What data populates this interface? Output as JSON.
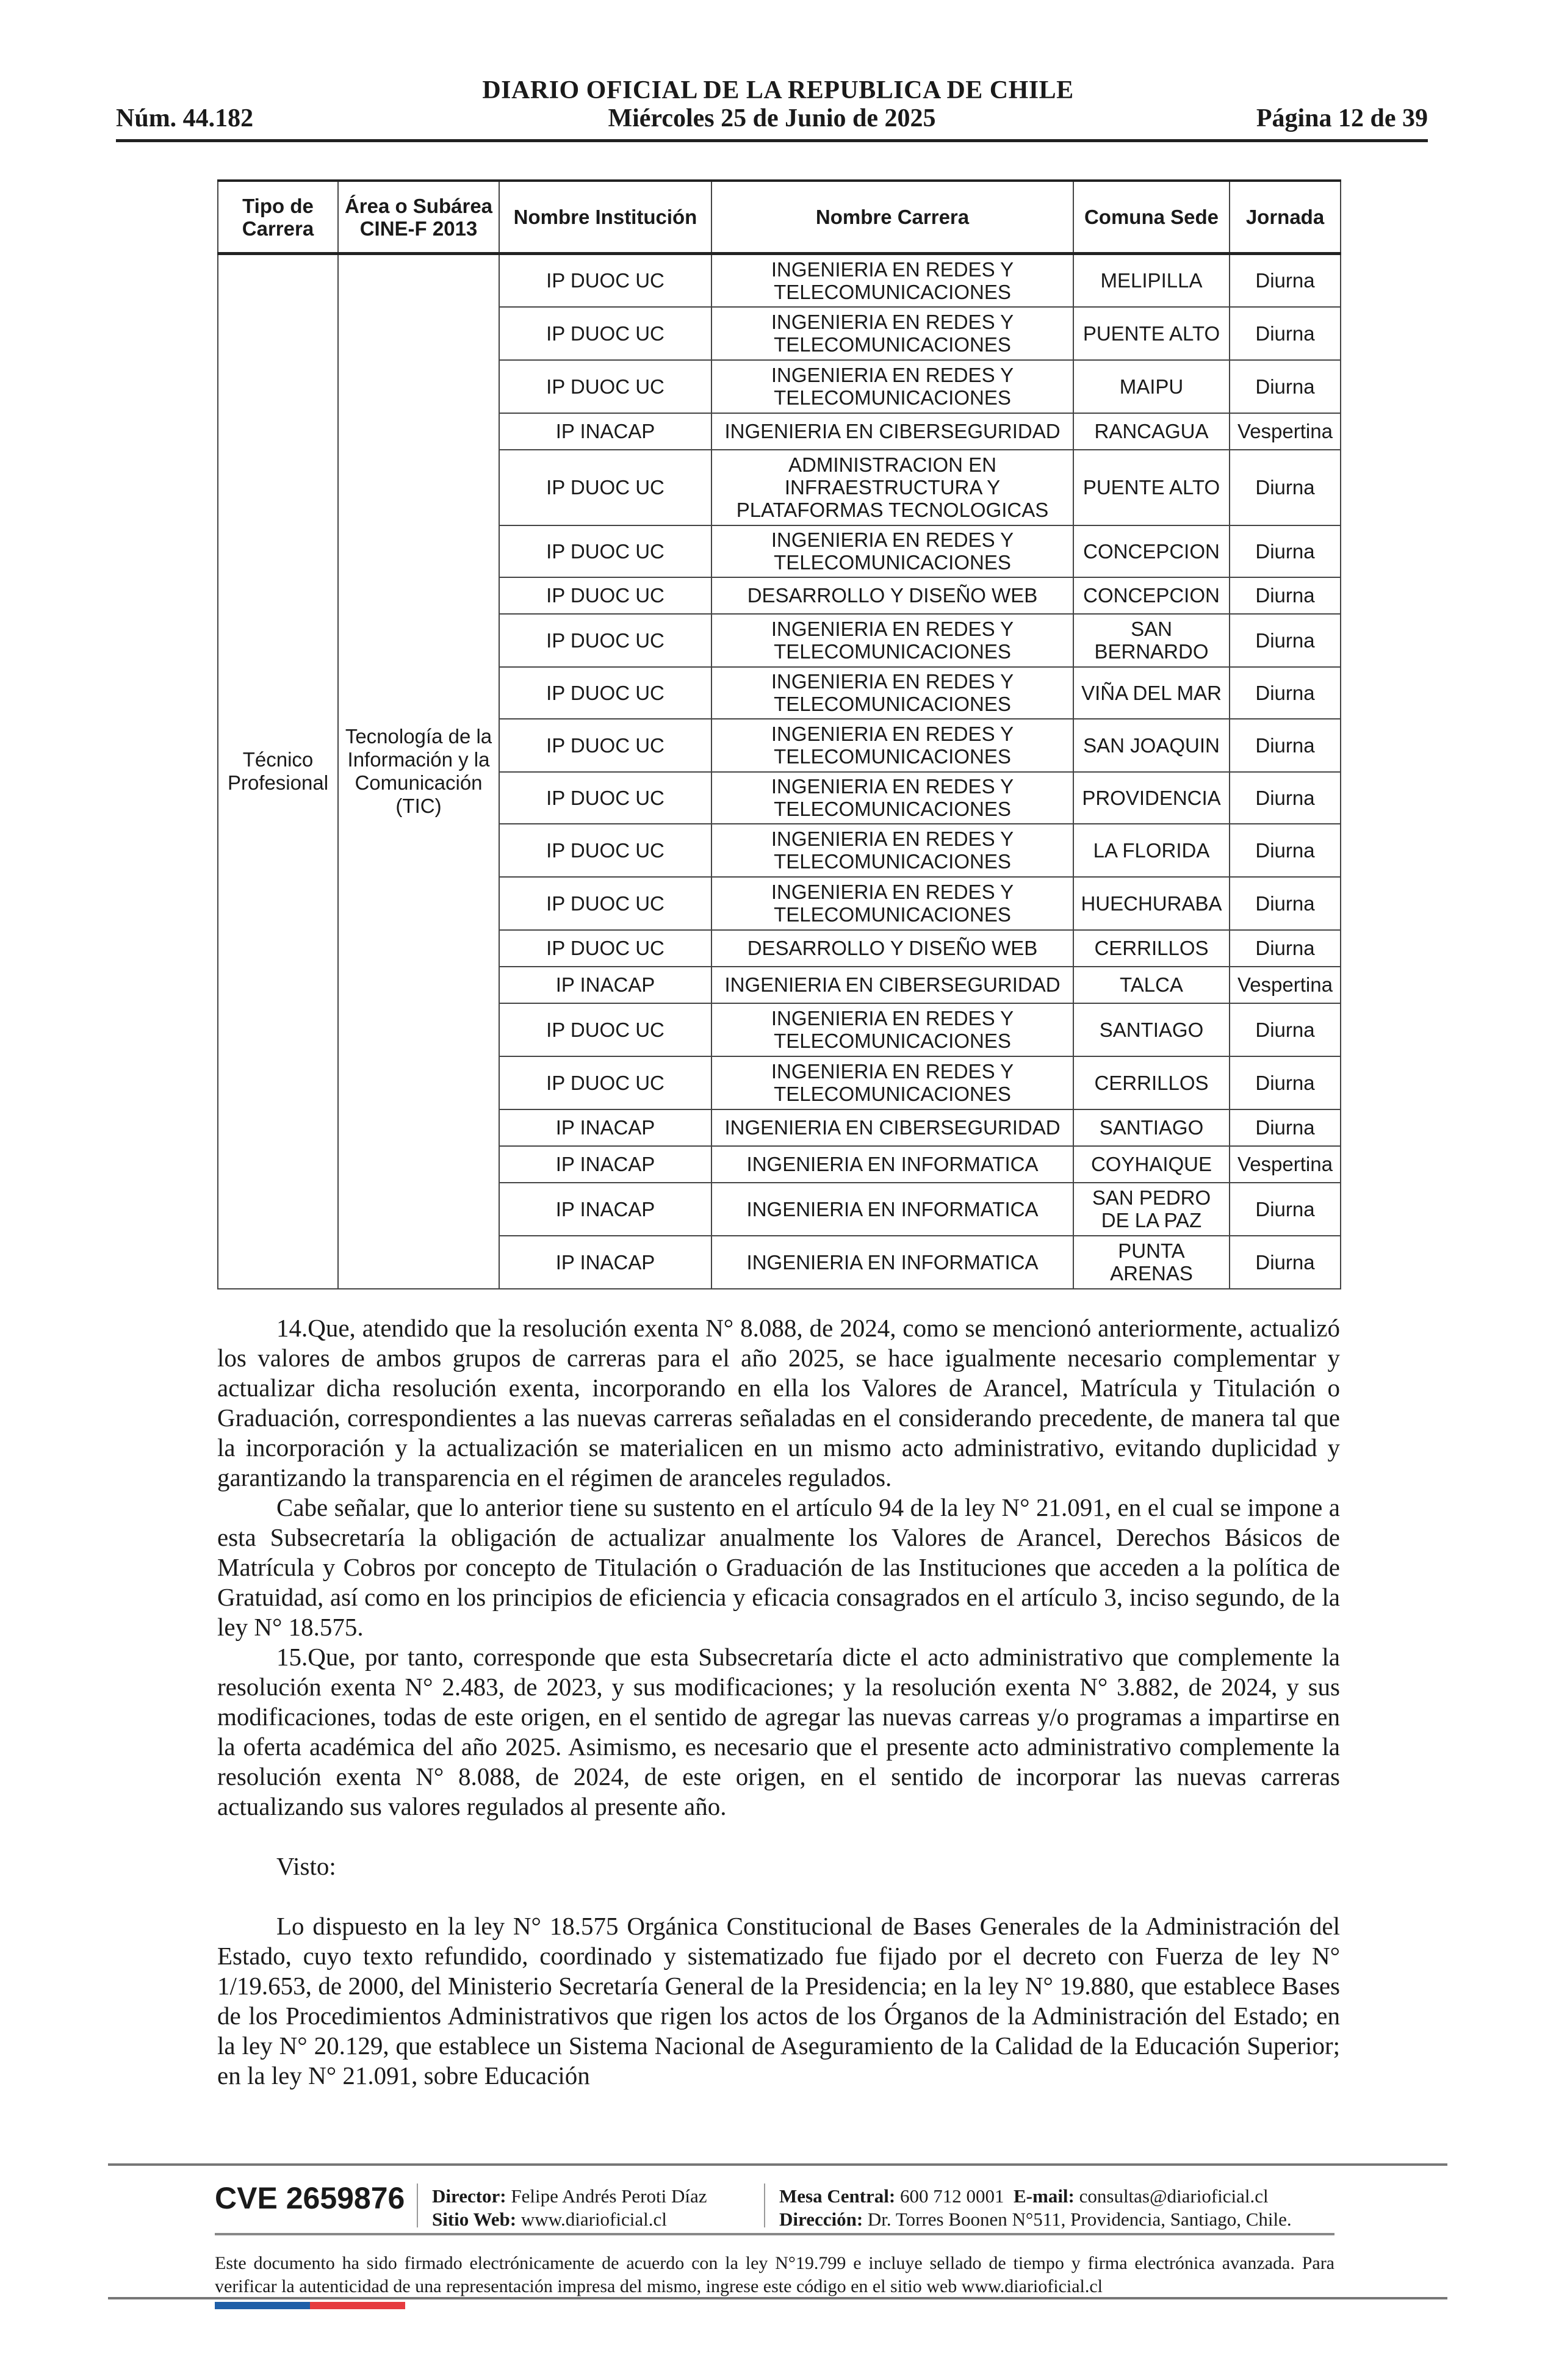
{
  "header": {
    "title": "DIARIO OFICIAL DE LA REPUBLICA DE CHILE",
    "number": "Núm. 44.182",
    "date": "Miércoles 25 de Junio de 2025",
    "page": "Página 12 de 39"
  },
  "table": {
    "headers": [
      "Tipo de Carrera",
      "Área o Subárea CINE-F 2013",
      "Nombre Institución",
      "Nombre Carrera",
      "Comuna Sede",
      "Jornada"
    ],
    "tipo": "Técnico Profesional",
    "area": "Tecnología de la Información y la Comunicación (TIC)",
    "rows": [
      {
        "inst": "IP DUOC UC",
        "carrera": "INGENIERIA EN REDES Y TELECOMUNICACIONES",
        "comuna": "MELIPILLA",
        "jornada": "Diurna"
      },
      {
        "inst": "IP DUOC UC",
        "carrera": "INGENIERIA EN REDES Y TELECOMUNICACIONES",
        "comuna": "PUENTE ALTO",
        "jornada": "Diurna"
      },
      {
        "inst": "IP DUOC UC",
        "carrera": "INGENIERIA EN REDES Y TELECOMUNICACIONES",
        "comuna": "MAIPU",
        "jornada": "Diurna"
      },
      {
        "inst": "IP INACAP",
        "carrera": "INGENIERIA EN CIBERSEGURIDAD",
        "comuna": "RANCAGUA",
        "jornada": "Vespertina"
      },
      {
        "inst": "IP DUOC UC",
        "carrera": "ADMINISTRACION EN INFRAESTRUCTURA Y PLATAFORMAS TECNOLOGICAS",
        "comuna": "PUENTE ALTO",
        "jornada": "Diurna"
      },
      {
        "inst": "IP DUOC UC",
        "carrera": "INGENIERIA EN REDES Y TELECOMUNICACIONES",
        "comuna": "CONCEPCION",
        "jornada": "Diurna"
      },
      {
        "inst": "IP DUOC UC",
        "carrera": "DESARROLLO Y DISEÑO WEB",
        "comuna": "CONCEPCION",
        "jornada": "Diurna"
      },
      {
        "inst": "IP DUOC UC",
        "carrera": "INGENIERIA EN REDES Y TELECOMUNICACIONES",
        "comuna": "SAN BERNARDO",
        "jornada": "Diurna"
      },
      {
        "inst": "IP DUOC UC",
        "carrera": "INGENIERIA EN REDES Y TELECOMUNICACIONES",
        "comuna": "VIÑA DEL MAR",
        "jornada": "Diurna"
      },
      {
        "inst": "IP DUOC UC",
        "carrera": "INGENIERIA EN REDES Y TELECOMUNICACIONES",
        "comuna": "SAN JOAQUIN",
        "jornada": "Diurna"
      },
      {
        "inst": "IP DUOC UC",
        "carrera": "INGENIERIA EN REDES Y TELECOMUNICACIONES",
        "comuna": "PROVIDENCIA",
        "jornada": "Diurna"
      },
      {
        "inst": "IP DUOC UC",
        "carrera": "INGENIERIA EN REDES Y TELECOMUNICACIONES",
        "comuna": "LA FLORIDA",
        "jornada": "Diurna"
      },
      {
        "inst": "IP DUOC UC",
        "carrera": "INGENIERIA EN REDES Y TELECOMUNICACIONES",
        "comuna": "HUECHURABA",
        "jornada": "Diurna"
      },
      {
        "inst": "IP DUOC UC",
        "carrera": "DESARROLLO Y DISEÑO WEB",
        "comuna": "CERRILLOS",
        "jornada": "Diurna"
      },
      {
        "inst": "IP INACAP",
        "carrera": "INGENIERIA EN CIBERSEGURIDAD",
        "comuna": "TALCA",
        "jornada": "Vespertina"
      },
      {
        "inst": "IP DUOC UC",
        "carrera": "INGENIERIA EN REDES Y TELECOMUNICACIONES",
        "comuna": "SANTIAGO",
        "jornada": "Diurna"
      },
      {
        "inst": "IP DUOC UC",
        "carrera": "INGENIERIA EN REDES Y TELECOMUNICACIONES",
        "comuna": "CERRILLOS",
        "jornada": "Diurna"
      },
      {
        "inst": "IP INACAP",
        "carrera": "INGENIERIA EN CIBERSEGURIDAD",
        "comuna": "SANTIAGO",
        "jornada": "Diurna"
      },
      {
        "inst": "IP INACAP",
        "carrera": "INGENIERIA EN INFORMATICA",
        "comuna": "COYHAIQUE",
        "jornada": "Vespertina"
      },
      {
        "inst": "IP INACAP",
        "carrera": "INGENIERIA EN INFORMATICA",
        "comuna": "SAN PEDRO DE LA PAZ",
        "jornada": "Diurna"
      },
      {
        "inst": "IP INACAP",
        "carrera": "INGENIERIA EN INFORMATICA",
        "comuna": "PUNTA ARENAS",
        "jornada": "Diurna"
      }
    ]
  },
  "body": {
    "paragraphs": [
      "14.Que, atendido que la resolución exenta N° 8.088, de 2024, como se mencionó anteriormente, actualizó los valores de ambos grupos de carreras para el año 2025, se hace igualmente necesario complementar y actualizar dicha resolución exenta, incorporando en ella los Valores de Arancel, Matrícula y Titulación o Graduación, correspondientes a las nuevas carreras señaladas en el considerando precedente, de manera tal que la incorporación y la actualización se materialicen en un mismo acto administrativo, evitando duplicidad  y garantizando la transparencia en el régimen de aranceles regulados.",
      "Cabe señalar, que lo anterior tiene su sustento en el artículo 94 de la ley N° 21.091, en el cual se impone a esta Subsecretaría la obligación de actualizar anualmente los Valores de Arancel, Derechos Básicos de Matrícula y Cobros por concepto de Titulación o Graduación de las Instituciones que acceden a la política de Gratuidad, así como en los principios de eficiencia y eficacia consagrados en el artículo 3, inciso segundo, de la ley N° 18.575.",
      "15.Que, por tanto, corresponde que esta Subsecretaría dicte el acto administrativo que complemente la resolución exenta N° 2.483, de 2023, y sus modificaciones; y la resolución exenta N° 3.882, de 2024, y sus modificaciones, todas de este origen, en el sentido de agregar las nuevas carreas y/o programas a impartirse en la oferta académica del año 2025. Asimismo, es necesario que el presente acto administrativo complemente la resolución exenta N° 8.088, de 2024, de este origen, en el sentido de incorporar las nuevas carreras actualizando sus valores regulados al presente año.",
      "Visto:",
      "Lo dispuesto en la ley N° 18.575 Orgánica Constitucional de Bases Generales de la Administración del Estado, cuyo texto refundido, coordinado y sistematizado fue fijado por el decreto con Fuerza de ley N° 1/19.653, de 2000, del Ministerio Secretaría General de la Presidencia; en la ley N° 19.880, que establece Bases de los Procedimientos Administrativos que rigen los actos de los Órganos de la Administración del Estado; en la ley N° 20.129, que establece un Sistema Nacional de Aseguramiento de la Calidad de la Educación Superior; en la ley N° 21.091, sobre Educación"
    ]
  },
  "footer": {
    "cve": "CVE 2659876",
    "director_label": "Director:",
    "director": "Felipe Andrés Peroti Díaz",
    "web_label": "Sitio Web:",
    "web": "www.diarioficial.cl",
    "mesa_label": "Mesa Central:",
    "mesa": "600 712 0001",
    "email_label": "E-mail:",
    "email": "consultas@diarioficial.cl",
    "dir_label": "Dirección:",
    "direccion": "Dr. Torres Boonen N°511, Providencia, Santiago, Chile.",
    "note": "Este documento ha sido firmado electrónicamente de acuerdo con la ley N°19.799 e incluye sellado de tiempo y firma electrónica avanzada. Para verificar la autenticidad de una representación impresa del mismo, ingrese este código en el sitio web www.diarioficial.cl",
    "colors": {
      "blue": "#1f5fa8",
      "red": "#e63b3f"
    }
  }
}
